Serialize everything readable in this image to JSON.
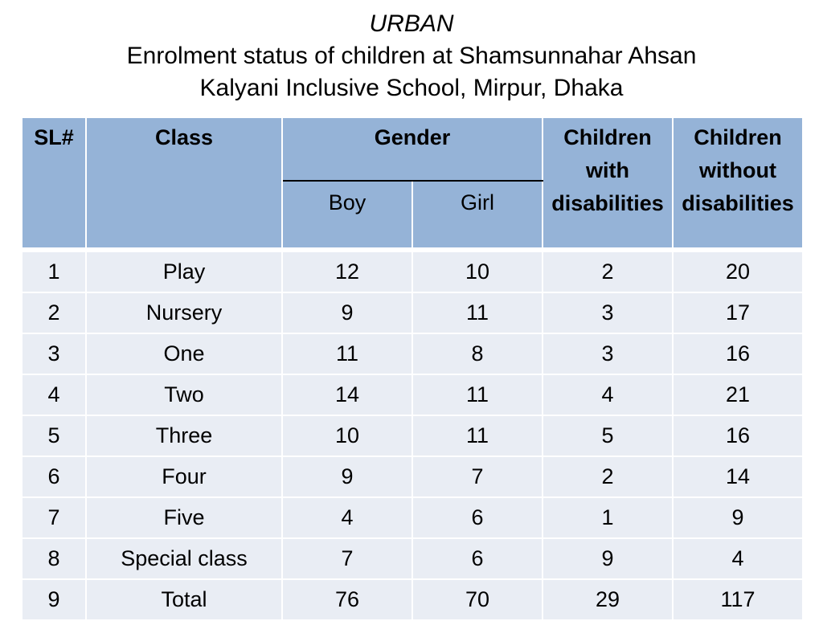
{
  "title": {
    "line1": "URBAN",
    "line2": "Enrolment status of children at Shamsunnahar Ahsan",
    "line3": "Kalyani Inclusive School, Mirpur, Dhaka"
  },
  "table": {
    "headers": {
      "sl": "SL#",
      "class": "Class",
      "gender": "Gender",
      "boy": "Boy",
      "girl": "Girl",
      "with_disabilities_1": "Children",
      "with_disabilities_2": "with",
      "with_disabilities_3": "disabilities",
      "without_disabilities_1": "Children",
      "without_disabilities_2": "without",
      "without_disabilities_3": "disabilities"
    },
    "rows": [
      {
        "sl": "1",
        "class": "Play",
        "boy": "12",
        "girl": "10",
        "with": "2",
        "without": "20"
      },
      {
        "sl": "2",
        "class": "Nursery",
        "boy": "9",
        "girl": "11",
        "with": "3",
        "without": "17"
      },
      {
        "sl": "3",
        "class": "One",
        "boy": "11",
        "girl": "8",
        "with": "3",
        "without": "16"
      },
      {
        "sl": "4",
        "class": "Two",
        "boy": "14",
        "girl": "11",
        "with": "4",
        "without": "21"
      },
      {
        "sl": "5",
        "class": "Three",
        "boy": "10",
        "girl": "11",
        "with": "5",
        "without": "16"
      },
      {
        "sl": "6",
        "class": "Four",
        "boy": "9",
        "girl": "7",
        "with": "2",
        "without": "14"
      },
      {
        "sl": "7",
        "class": "Five",
        "boy": "4",
        "girl": "6",
        "with": "1",
        "without": "9"
      },
      {
        "sl": "8",
        "class": "Special class",
        "boy": "7",
        "girl": "6",
        "with": "9",
        "without": "4"
      },
      {
        "sl": "9",
        "class": "Total",
        "boy": "76",
        "girl": "70",
        "with": "29",
        "without": "117"
      }
    ]
  },
  "colors": {
    "header_bg": "#95b3d7",
    "row_bg": "#e9edf4"
  }
}
